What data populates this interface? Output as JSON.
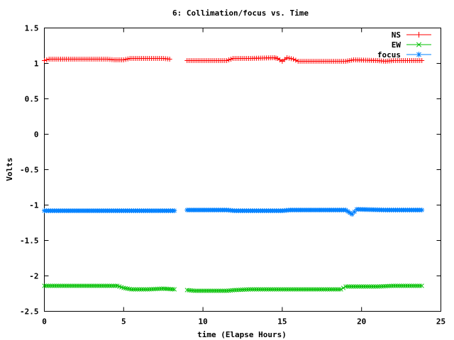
{
  "chart_data": {
    "type": "line",
    "title": "6: Collimation/focus vs. Time",
    "xlabel": "time (Elapse Hours)",
    "ylabel": "Volts",
    "xlim": [
      0,
      25
    ],
    "ylim": [
      -2.5,
      1.5
    ],
    "xticks": [
      0,
      5,
      10,
      15,
      20,
      25
    ],
    "yticks": [
      -2.5,
      -2,
      -1.5,
      -1,
      -0.5,
      0,
      0.5,
      1,
      1.5
    ],
    "grid": false,
    "legend_position": "top-right",
    "series": [
      {
        "name": "NS",
        "color": "#ff0000",
        "marker": "plus",
        "segments": [
          [
            [
              0,
              1.04
            ],
            [
              0.3,
              1.06
            ],
            [
              2,
              1.06
            ],
            [
              4,
              1.06
            ],
            [
              4.4,
              1.05
            ],
            [
              5,
              1.05
            ],
            [
              5.4,
              1.07
            ],
            [
              6.5,
              1.07
            ],
            [
              7.5,
              1.07
            ],
            [
              7.9,
              1.06
            ]
          ],
          [
            [
              9,
              1.04
            ],
            [
              10,
              1.04
            ],
            [
              11.5,
              1.04
            ],
            [
              11.9,
              1.07
            ],
            [
              13,
              1.07
            ],
            [
              14.5,
              1.08
            ],
            [
              14.7,
              1.07
            ],
            [
              15,
              1.03
            ],
            [
              15.3,
              1.08
            ],
            [
              15.7,
              1.06
            ],
            [
              16,
              1.03
            ],
            [
              17,
              1.03
            ],
            [
              19,
              1.03
            ],
            [
              19.5,
              1.05
            ],
            [
              21,
              1.04
            ],
            [
              21.5,
              1.03
            ],
            [
              22,
              1.04
            ],
            [
              23.8,
              1.04
            ]
          ]
        ]
      },
      {
        "name": "EW",
        "color": "#00c000",
        "marker": "cross",
        "segments": [
          [
            [
              0,
              -2.14
            ],
            [
              2,
              -2.14
            ],
            [
              4,
              -2.14
            ],
            [
              4.6,
              -2.14
            ],
            [
              5,
              -2.17
            ],
            [
              5.5,
              -2.19
            ],
            [
              6.5,
              -2.19
            ],
            [
              7.5,
              -2.18
            ],
            [
              8.2,
              -2.19
            ]
          ],
          [
            [
              9,
              -2.2
            ],
            [
              9.5,
              -2.21
            ],
            [
              11.5,
              -2.21
            ],
            [
              12,
              -2.2
            ],
            [
              13,
              -2.19
            ],
            [
              15,
              -2.19
            ],
            [
              16,
              -2.19
            ],
            [
              17,
              -2.19
            ],
            [
              18.7,
              -2.19
            ],
            [
              19,
              -2.15
            ],
            [
              20,
              -2.15
            ],
            [
              21,
              -2.15
            ],
            [
              22,
              -2.14
            ],
            [
              23.8,
              -2.14
            ]
          ]
        ]
      },
      {
        "name": "focus",
        "color": "#0080ff",
        "marker": "star",
        "segments": [
          [
            [
              0,
              -1.08
            ],
            [
              4,
              -1.08
            ],
            [
              6,
              -1.08
            ],
            [
              8.2,
              -1.08
            ]
          ],
          [
            [
              9,
              -1.07
            ],
            [
              11.5,
              -1.07
            ],
            [
              12,
              -1.08
            ],
            [
              15,
              -1.08
            ],
            [
              15.5,
              -1.07
            ],
            [
              19,
              -1.07
            ],
            [
              19.4,
              -1.13
            ],
            [
              19.7,
              -1.06
            ],
            [
              21.5,
              -1.07
            ],
            [
              23.8,
              -1.07
            ]
          ]
        ]
      }
    ]
  }
}
